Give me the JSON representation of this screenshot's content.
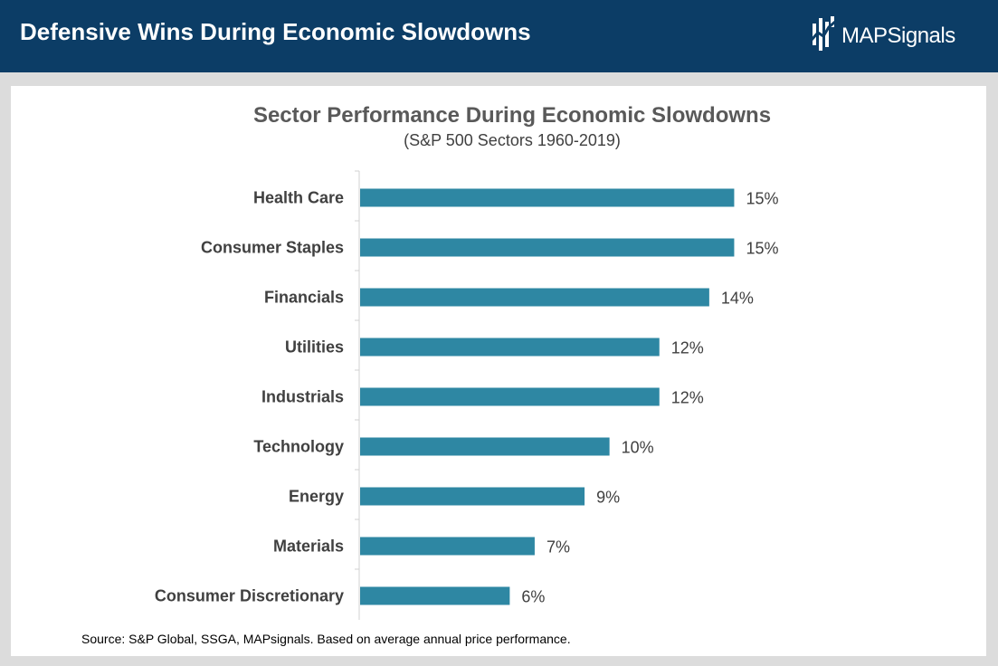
{
  "header": {
    "title": "Defensive Wins During Economic Slowdowns",
    "logo_text": "MAPSignals"
  },
  "colors": {
    "header_bg": "#0c3d66",
    "bar": "#2e87a3",
    "text": "#404040"
  },
  "chart_data": {
    "type": "bar",
    "orientation": "horizontal",
    "title": "Sector Performance During Economic Slowdowns",
    "subtitle": "(S&P 500 Sectors 1960-2019)",
    "categories": [
      "Health Care",
      "Consumer Staples",
      "Financials",
      "Utilities",
      "Industrials",
      "Technology",
      "Energy",
      "Materials",
      "Consumer Discretionary"
    ],
    "values": [
      15,
      15,
      14,
      12,
      12,
      10,
      9,
      7,
      6
    ],
    "data_labels": [
      "15%",
      "15%",
      "14%",
      "12%",
      "12%",
      "10%",
      "9%",
      "7%",
      "6%"
    ],
    "xlim": [
      0,
      16
    ],
    "grid": false,
    "legend": "none"
  },
  "footer": {
    "source": "Source: S&P Global, SSGA, MAPsignals. Based on average annual price performance."
  }
}
